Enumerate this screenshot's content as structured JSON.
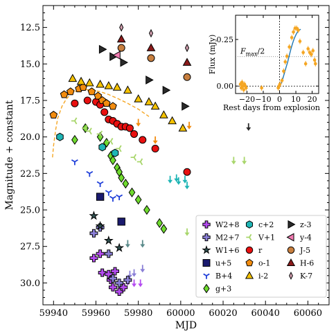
{
  "chart_data": {
    "type": "scatter",
    "xlabel": "MJD",
    "ylabel": "Magnitude + constant",
    "xlim": [
      59935,
      60070
    ],
    "ylim": [
      31.5,
      11.0
    ],
    "y_inverted": true,
    "xticks": [
      59940,
      59960,
      59980,
      60000,
      60020,
      60040,
      60060
    ],
    "xtick_labels": [
      "59940",
      "59960",
      "59980",
      "60000",
      "60020",
      "60040",
      "60060"
    ],
    "yticks": [
      12.5,
      15.0,
      17.5,
      20.0,
      22.5,
      25.0,
      27.5,
      30.0
    ],
    "ytick_labels": [
      "12.5",
      "15.0",
      "17.5",
      "20.0",
      "22.5",
      "25.0",
      "27.5",
      "30.0"
    ],
    "legend_position": "lower-right",
    "fit_curve": {
      "color": "#f5a623",
      "style": "dashed",
      "x": [
        59939.5,
        59940,
        59941,
        59942,
        59944,
        59946,
        59948,
        59950,
        59952,
        59955,
        59958,
        59962,
        59966,
        59970,
        59975,
        59980,
        59985
      ],
      "y": [
        21.4,
        20.6,
        19.5,
        18.7,
        17.9,
        17.4,
        17.1,
        16.9,
        16.8,
        16.75,
        16.8,
        16.9,
        17.1,
        17.35,
        17.7,
        18.1,
        18.6
      ]
    },
    "series": [
      {
        "name": "W2+8",
        "color": "#b44cf0",
        "marker": "plus-thick",
        "points": [
          [
            59959,
            28.3
          ],
          [
            59962,
            28.0
          ],
          [
            59963,
            29.3
          ],
          [
            59966,
            29.4
          ],
          [
            59967,
            29.8
          ],
          [
            59968,
            30.3
          ],
          [
            59969,
            29.2
          ],
          [
            59971,
            30.6
          ],
          [
            59973,
            30.3
          ]
        ]
      },
      {
        "name": "M2+7",
        "color": "#8a7fd6",
        "marker": "plus-thick",
        "points": [
          [
            59959,
            26.6
          ],
          [
            59962,
            26.2
          ],
          [
            59966,
            28.0
          ],
          [
            59968,
            29.7
          ],
          [
            59971,
            30.0
          ],
          [
            59975,
            29.8
          ]
        ]
      },
      {
        "name": "W1+6",
        "color": "#2f4f4f",
        "marker": "star",
        "points": [
          [
            59959,
            25.4
          ],
          [
            59962,
            26.1
          ],
          [
            59966,
            27.1
          ],
          [
            59971,
            27.6
          ]
        ]
      },
      {
        "name": "u+5",
        "color": "#1a1a6e",
        "marker": "square",
        "points": [
          [
            59962,
            24.1
          ],
          [
            59972,
            25.8
          ]
        ]
      },
      {
        "name": "B+4",
        "color": "#1f3fd9",
        "marker": "tri-down",
        "points": [
          [
            59950,
            21.7
          ],
          [
            59957,
            22.5
          ],
          [
            59962,
            23.2
          ],
          [
            59966,
            23.8
          ],
          [
            59968,
            24.2
          ],
          [
            59971,
            24.1
          ]
        ]
      },
      {
        "name": "g+3",
        "color": "#6fdb2e",
        "marker": "diamond",
        "points": [
          [
            59950,
            20.2
          ],
          [
            59955,
            19.4
          ],
          [
            59962,
            20.0
          ],
          [
            59965,
            20.4
          ],
          [
            59967,
            21.3
          ],
          [
            59968,
            21.6
          ],
          [
            59970,
            22.1
          ],
          [
            59971,
            22.4
          ],
          [
            59972,
            22.8
          ],
          [
            59974,
            23.2
          ],
          [
            59977,
            23.8
          ],
          [
            59980,
            24.3
          ],
          [
            59984,
            25.0
          ],
          [
            59990,
            25.9
          ],
          [
            59992,
            26.3
          ]
        ]
      },
      {
        "name": "c+2",
        "color": "#1fb5b5",
        "marker": "hexagon",
        "points": [
          [
            59943,
            20.0
          ],
          [
            59963,
            20.7
          ],
          [
            59969,
            21.1
          ]
        ]
      },
      {
        "name": "V+1",
        "color": "#a8d66b",
        "marker": "tri-left",
        "points": [
          [
            59950,
            18.9
          ],
          [
            59955,
            19.4
          ],
          [
            59957,
            19.6
          ],
          [
            59962,
            19.8
          ],
          [
            59967,
            20.3
          ],
          [
            59971,
            20.8
          ],
          [
            59978,
            21.4
          ],
          [
            59981,
            21.7
          ]
        ]
      },
      {
        "name": "r",
        "color": "#e81010",
        "marker": "circle",
        "points": [
          [
            59950,
            17.7
          ],
          [
            59956,
            17.5
          ],
          [
            59960,
            17.6
          ],
          [
            59962,
            17.8
          ],
          [
            59964,
            18.3
          ],
          [
            59966,
            18.8
          ],
          [
            59968,
            18.9
          ],
          [
            59970,
            19.1
          ],
          [
            59972,
            19.3
          ],
          [
            59974,
            19.3
          ],
          [
            59976,
            19.4
          ],
          [
            59978,
            19.8
          ],
          [
            59982,
            20.2
          ],
          [
            59988,
            20.8
          ],
          [
            60003,
            22.4
          ]
        ]
      },
      {
        "name": "o-1",
        "color": "#f28c0f",
        "marker": "pentagon",
        "points": [
          [
            59940,
            18.5
          ],
          [
            59945,
            17.1
          ],
          [
            59948,
            16.9
          ],
          [
            59952,
            16.7
          ],
          [
            59954,
            16.6
          ],
          [
            59958,
            16.9
          ],
          [
            59961,
            17.2
          ],
          [
            59963,
            17.5
          ],
          [
            59965,
            17.7
          ],
          [
            59968,
            17.9
          ]
        ]
      },
      {
        "name": "i-2",
        "color": "#f5c200",
        "marker": "triangle-up",
        "points": [
          [
            59949,
            16.0
          ],
          [
            59953,
            16.2
          ],
          [
            59957,
            16.3
          ],
          [
            59962,
            16.4
          ],
          [
            59966,
            16.5
          ],
          [
            59970,
            16.6
          ],
          [
            59975,
            16.8
          ],
          [
            59980,
            17.4
          ],
          [
            59985,
            17.6
          ],
          [
            59988,
            17.9
          ],
          [
            59992,
            18.5
          ],
          [
            59996,
            18.9
          ],
          [
            60001,
            19.4
          ]
        ]
      },
      {
        "name": "z-3",
        "color": "#2a2a2a",
        "marker": "triangle-right",
        "points": [
          [
            59963,
            14.0
          ],
          [
            59968,
            14.5
          ],
          [
            59973,
            14.9
          ],
          [
            59985,
            16.1
          ],
          [
            59993,
            16.8
          ],
          [
            60002,
            17.9
          ]
        ]
      },
      {
        "name": "y-4",
        "color": "#f07ab0",
        "marker": "triangle-left",
        "points": [
          [
            59970,
            14.4
          ]
        ]
      },
      {
        "name": "J-5",
        "color": "#c87f3f",
        "marker": "circle",
        "points": [
          [
            59972,
            13.9
          ],
          [
            59986,
            14.6
          ],
          [
            60003,
            15.9
          ]
        ]
      },
      {
        "name": "H-6",
        "color": "#8b1a1a",
        "marker": "triangle-up",
        "points": [
          [
            59972,
            13.3
          ],
          [
            59986,
            13.9
          ],
          [
            60003,
            14.9
          ]
        ]
      },
      {
        "name": "K-7",
        "color": "#d4a0b0",
        "marker": "thin-diamond",
        "points": [
          [
            59972,
            12.5
          ],
          [
            59986,
            12.9
          ],
          [
            60003,
            13.9
          ]
        ]
      }
    ],
    "upper_limits": [
      {
        "series": "W2+8",
        "color": "#b44cf0",
        "x": [
          59975,
          59978,
          59981
        ],
        "y": [
          29.9,
          30.0,
          30.0
        ]
      },
      {
        "series": "M2+7",
        "color": "#8a7fd6",
        "x": [
          59976,
          59978,
          59982
        ],
        "y": [
          29.4,
          29.3,
          29.0
        ]
      },
      {
        "series": "W1+6",
        "color": "#5a8a8a",
        "x": [
          59975,
          59982
        ],
        "y": [
          27.3,
          27.3
        ]
      },
      {
        "series": "c+2",
        "color": "#1fb5b5",
        "x": [
          59995,
          59998,
          59999,
          60002,
          60003
        ],
        "y": [
          22.9,
          22.8,
          23.0,
          22.9,
          23.3
        ]
      },
      {
        "series": "V+1",
        "color": "#a8d66b",
        "x": [
          60003,
          60025,
          60030
        ],
        "y": [
          26.5,
          21.6,
          21.6
        ]
      },
      {
        "series": "o-1",
        "color": "#f28c0f",
        "x": [
          59980,
          59988,
          60004
        ],
        "y": [
          19.0,
          20.2,
          19.2
        ]
      },
      {
        "series": "z-3",
        "color": "#2a2a2a",
        "x": [
          60032
        ],
        "y": [
          19.3
        ]
      }
    ],
    "legend_order": [
      "W2+8",
      "M2+7",
      "W1+6",
      "u+5",
      "B+4",
      "g+3",
      "c+2",
      "V+1",
      "r",
      "o-1",
      "i-2",
      "z-3",
      "y-4",
      "J-5",
      "H-6",
      "K-7"
    ],
    "inset": {
      "type": "scatter",
      "xlabel": "Rest days from explosion",
      "ylabel": "Flux (mJy)",
      "annotation": "F_max/2",
      "xlim": [
        -27,
        24
      ],
      "ylim": [
        -0.04,
        0.38
      ],
      "xticks": [
        -20,
        -10,
        0,
        10,
        20
      ],
      "xtick_labels": [
        "−20",
        "−10",
        "0",
        "10",
        "20"
      ],
      "yticks": [
        0.0,
        0.25
      ],
      "ytick_labels": [
        "0.00",
        "0.25"
      ],
      "vline": 0,
      "hline_max_half": 0.158,
      "hline_zero": 0,
      "marker_color": "#f5a623",
      "model_color": "#1f77b4",
      "points": [
        [
          -24.0,
          0.01
        ],
        [
          -23.5,
          -0.01
        ],
        [
          -23.0,
          0.02
        ],
        [
          -22.5,
          0.0
        ],
        [
          -22.0,
          -0.02
        ],
        [
          -21.5,
          0.01
        ],
        [
          -21.0,
          0.0
        ],
        [
          -20.5,
          -0.01
        ],
        [
          -11.0,
          -0.01
        ],
        [
          -0.8,
          -0.01
        ],
        [
          -0.3,
          0.0
        ],
        [
          0.2,
          0.01
        ],
        [
          1.5,
          0.03
        ],
        [
          2.5,
          0.08
        ],
        [
          3.5,
          0.13
        ],
        [
          4.5,
          0.16
        ],
        [
          6.0,
          0.21
        ],
        [
          7.5,
          0.26
        ],
        [
          8.5,
          0.29
        ],
        [
          9.5,
          0.31
        ],
        [
          10.5,
          0.31
        ],
        [
          11.5,
          0.3
        ],
        [
          12.5,
          0.24
        ],
        [
          14.5,
          0.18
        ],
        [
          16.0,
          0.12
        ],
        [
          17.5,
          0.2
        ],
        [
          18.5,
          0.18
        ],
        [
          19.5,
          0.17
        ],
        [
          20.5,
          0.19
        ],
        [
          21.5,
          0.14
        ],
        [
          22.0,
          0.12
        ]
      ],
      "model": [
        [
          0,
          0.0
        ],
        [
          1,
          0.015
        ],
        [
          2,
          0.04
        ],
        [
          3,
          0.07
        ],
        [
          4,
          0.1
        ],
        [
          5,
          0.13
        ],
        [
          6,
          0.165
        ],
        [
          7,
          0.2
        ],
        [
          8,
          0.23
        ],
        [
          9,
          0.255
        ],
        [
          10,
          0.275
        ],
        [
          11,
          0.29
        ],
        [
          12,
          0.3
        ],
        [
          13,
          0.305
        ]
      ]
    }
  }
}
